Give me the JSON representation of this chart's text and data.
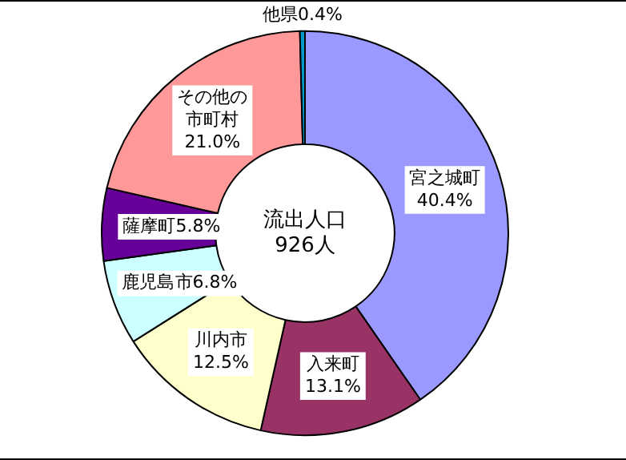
{
  "chart_data": {
    "type": "donut",
    "title": "流出人口",
    "subtitle": "926人",
    "categories": [
      "宮之城町",
      "入来町",
      "川内市",
      "鹿児島市",
      "薩摩町",
      "その他の市町村",
      "他県"
    ],
    "values": [
      40.4,
      13.1,
      12.5,
      6.8,
      5.8,
      21.0,
      0.4
    ],
    "value_labels": [
      "40.4%",
      "13.1%",
      "12.5%",
      "6.8%",
      "5.8%",
      "21.0%",
      "0.4%"
    ],
    "colors": [
      "#9999ff",
      "#993366",
      "#ffffcc",
      "#ccffff",
      "#660099",
      "#ff9999",
      "#0099cc"
    ],
    "legend": false
  }
}
